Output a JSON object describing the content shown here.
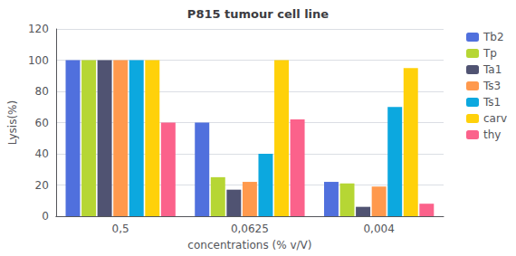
{
  "chart_data": {
    "type": "bar",
    "title": "P815 tumour cell line",
    "xlabel": "concentrations (% v/V)",
    "ylabel": "Lysis(%)",
    "categories": [
      "0,5",
      "0,0625",
      "0,004"
    ],
    "series": [
      {
        "name": "Tb2",
        "values": [
          100,
          60,
          22
        ]
      },
      {
        "name": "Tp",
        "values": [
          100,
          25,
          21
        ]
      },
      {
        "name": "Ta1",
        "values": [
          100,
          17,
          6
        ]
      },
      {
        "name": "Ts3",
        "values": [
          100,
          22,
          19
        ]
      },
      {
        "name": "Ts1",
        "values": [
          100,
          40,
          70
        ]
      },
      {
        "name": "carv",
        "values": [
          100,
          100,
          95
        ]
      },
      {
        "name": "thy",
        "values": [
          60,
          62,
          8
        ]
      }
    ],
    "ylim": [
      0,
      120
    ],
    "yticks": [
      0,
      20,
      40,
      60,
      80,
      100,
      120
    ],
    "grid": true,
    "legend": "upper right"
  }
}
